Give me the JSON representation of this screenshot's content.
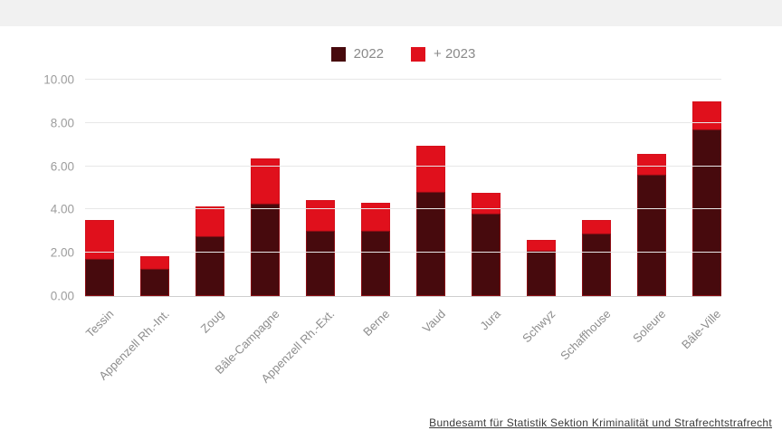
{
  "page": {
    "top_band_color": "#f1f1f1",
    "background_color": "#ffffff"
  },
  "legend": {
    "items": [
      {
        "label": "2022",
        "color": "#470a0d"
      },
      {
        "label": "+ 2023",
        "color": "#e0101c"
      }
    ]
  },
  "chart_data": {
    "type": "bar",
    "stacked": true,
    "title": "",
    "xlabel": "",
    "ylabel": "",
    "ylim": [
      0,
      10
    ],
    "grid": true,
    "legend_position": "top-center",
    "ytick_labels": [
      "10.00",
      "8.00",
      "6.00",
      "4.00",
      "2.00",
      "0.00"
    ],
    "ytick_values": [
      10,
      8,
      6,
      4,
      2,
      0
    ],
    "categories": [
      "Tessin",
      "Appenzell Rh.-Int.",
      "Zoug",
      "Bâle-Campagne",
      "Appenzell Rh.-Ext.",
      "Berne",
      "Vaud",
      "Jura",
      "Schwyz",
      "Schaffhouse",
      "Soleure",
      "Bâle-Ville"
    ],
    "series": [
      {
        "name": "2022",
        "color": "#470a0d",
        "values": [
          1.7,
          1.25,
          2.75,
          4.25,
          3.0,
          3.0,
          4.8,
          3.8,
          2.1,
          2.9,
          5.6,
          7.7
        ]
      },
      {
        "name": "+ 2023",
        "color": "#e0101c",
        "values": [
          1.8,
          0.6,
          1.4,
          2.1,
          1.45,
          1.3,
          2.15,
          0.95,
          0.5,
          0.6,
          0.95,
          1.3
        ]
      }
    ],
    "stacked_totals": [
      3.5,
      1.85,
      4.15,
      6.35,
      4.45,
      4.3,
      6.95,
      4.75,
      2.6,
      3.5,
      6.55,
      9.0
    ]
  },
  "colors": {
    "gridline": "#e7e7e7",
    "baseline": "#cfcfcf",
    "ytick_text": "#9d9d9d",
    "xtick_text": "#8d8d8d",
    "legend_text": "#8a8a8a",
    "footer_text": "#3a3a3a",
    "segment_border": "rgba(203,14,25,0.5)"
  },
  "footer": {
    "source_label": "Bundesamt für Statistik Sektion Kriminalität und Strafrechtstrafrecht"
  }
}
